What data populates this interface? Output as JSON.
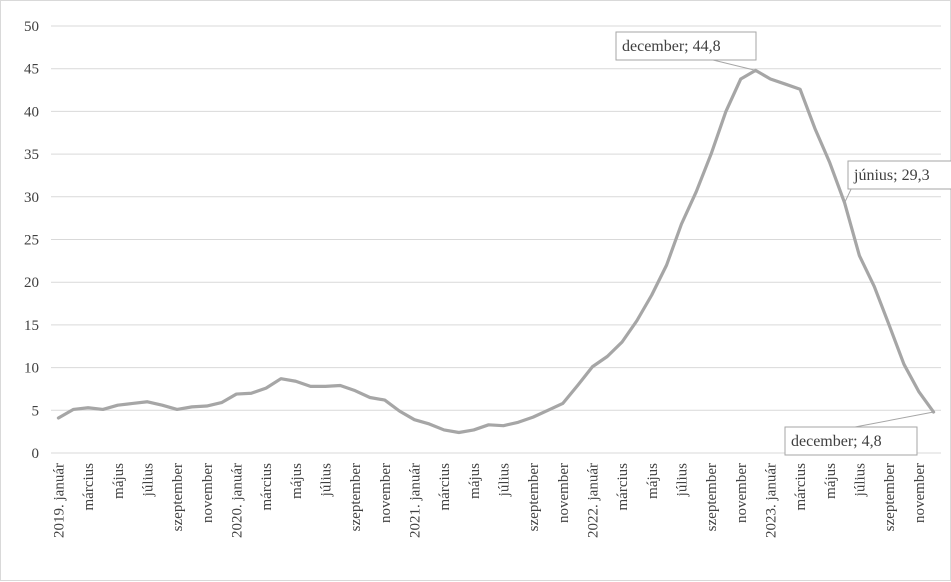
{
  "chart_data": {
    "type": "line",
    "title": "",
    "xlabel": "",
    "ylabel": "",
    "ylim": [
      0,
      50
    ],
    "y_ticks": [
      0,
      5,
      10,
      15,
      20,
      25,
      30,
      35,
      40,
      45,
      50
    ],
    "grid": "horizontal",
    "legend": "none",
    "line_color": "#a6a6a6",
    "x": [
      "2019. január",
      "február",
      "március",
      "április",
      "május",
      "június",
      "július",
      "augusztus",
      "szeptember",
      "október",
      "november",
      "december",
      "2020. január",
      "február",
      "március",
      "április",
      "május",
      "június",
      "július",
      "augusztus",
      "szeptember",
      "október",
      "november",
      "december",
      "2021. január",
      "február",
      "március",
      "április",
      "május",
      "június",
      "július",
      "augusztus",
      "szeptember",
      "október",
      "november",
      "december",
      "2022. január",
      "február",
      "március",
      "április",
      "május",
      "június",
      "július",
      "augusztus",
      "szeptember",
      "október",
      "november",
      "december",
      "2023. január",
      "február",
      "március",
      "április",
      "május",
      "június",
      "július",
      "augusztus",
      "szeptember",
      "október",
      "november",
      "december"
    ],
    "x_tick_labels": [
      "2019. január",
      "március",
      "május",
      "július",
      "szeptember",
      "november",
      "2020. január",
      "március",
      "május",
      "július",
      "szeptember",
      "november",
      "2021. január",
      "március",
      "május",
      "július",
      "szeptember",
      "november",
      "2022. január",
      "március",
      "május",
      "július",
      "szeptember",
      "november",
      "2023. január",
      "március",
      "május",
      "július",
      "szeptember",
      "november"
    ],
    "series": [
      {
        "values": [
          4.1,
          5.1,
          5.3,
          5.1,
          5.6,
          5.8,
          6.0,
          5.6,
          5.1,
          5.4,
          5.5,
          5.9,
          6.9,
          7.0,
          7.6,
          8.7,
          8.4,
          7.8,
          7.8,
          7.9,
          7.3,
          6.5,
          6.2,
          4.9,
          3.9,
          3.4,
          2.7,
          2.4,
          2.7,
          3.3,
          3.2,
          3.6,
          4.2,
          5.0,
          5.8,
          7.9,
          10.1,
          11.3,
          13.0,
          15.5,
          18.5,
          22.0,
          26.8,
          30.6,
          35.0,
          40.0,
          43.8,
          44.8,
          43.8,
          43.2,
          42.6,
          38.0,
          34.0,
          29.3,
          23.1,
          19.5,
          15.0,
          10.4,
          7.2,
          4.8
        ]
      }
    ],
    "annotations": [
      {
        "text": "december; 44,8",
        "index": 47
      },
      {
        "text": "június; 29,3",
        "index": 53
      },
      {
        "text": "december; 4,8",
        "index": 59
      }
    ]
  }
}
